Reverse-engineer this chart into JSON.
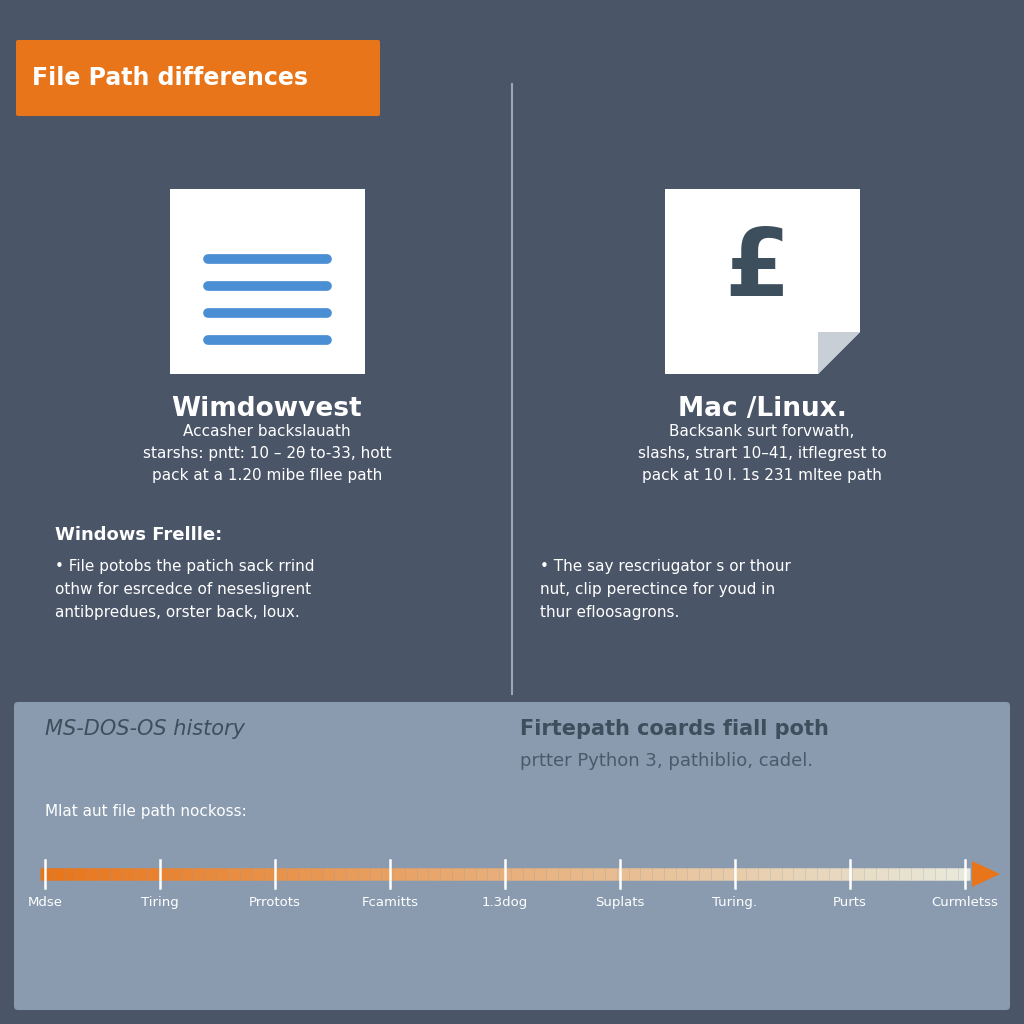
{
  "bg_color": "#4a5568",
  "timeline_bg": "#8a9bb0",
  "title_bg": "#e8751a",
  "title_text": "File Path differences",
  "title_color": "#ffffff",
  "divider_color": "#b0bec5",
  "win_title": "Wimdowvest",
  "win_desc": "Accasher backslauath\nstarshs: pntt: 10 – 2θ to-33, hott\npack at a 1.20 mibe fllee path",
  "win_section": "Windows Frellle:",
  "win_bullet": "File potobs the patich sack rrind\nothw for esrcedce of nesesligrent\nantibpredues, orster back, loux.",
  "mac_title": "Mac /Linux.",
  "mac_desc": "Backsank surt forvwath,\nslashs, strart 10–41, itflegrest to\npack at 10 l. 1s 231 mltee path",
  "mac_bullet": "The say rescriugator s or thour\nnut, clip perectince for youd in\nthur efloosagrons.",
  "timeline_title": "MS-DOS-OS history",
  "timeline_right_title": "Firtepath coards fiall poth",
  "timeline_right_sub": "prtter Python 3, pathiblio, cadel.",
  "timeline_label": "Mlat aut file path nockoss:",
  "timeline_points": [
    "Mdse",
    "Tiring",
    "Prrotots",
    "Fcamitts",
    "1.3dog",
    "Suplats",
    "Turing.",
    "Purts",
    "Curmletss"
  ],
  "icon_line_color": "#4a8fd4",
  "text_white": "#ffffff",
  "text_dark": "#3d4f5c",
  "text_dark2": "#4a5a6a",
  "orange_color": "#e8751a"
}
